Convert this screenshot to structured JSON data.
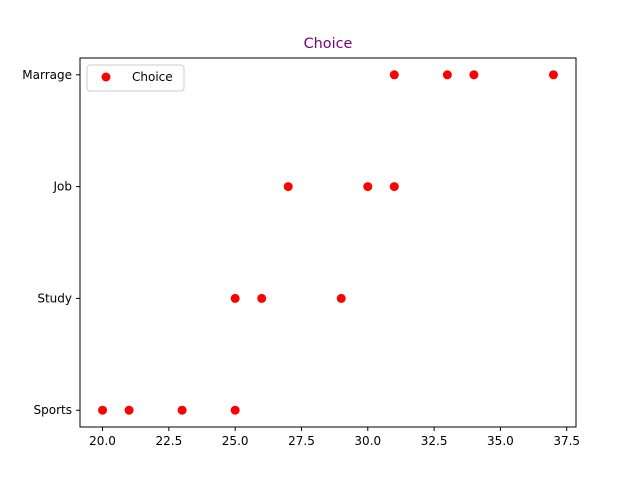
{
  "chart_data": {
    "type": "scatter",
    "title": "Choice",
    "title_color": "#800080",
    "xlabel": "",
    "ylabel": "",
    "xlim": [
      19.15,
      37.85
    ],
    "ylim": [
      -0.15,
      3.15
    ],
    "categories": [
      "Sports",
      "Study",
      "Job",
      "Marrage"
    ],
    "x_ticks": [
      20.0,
      22.5,
      25.0,
      27.5,
      30.0,
      32.5,
      35.0,
      37.5
    ],
    "x_tick_labels": [
      "20.0",
      "22.5",
      "25.0",
      "27.5",
      "30.0",
      "32.5",
      "35.0",
      "37.5"
    ],
    "grid": false,
    "legend_position": "top-left",
    "series": [
      {
        "name": "Choice",
        "color": "#ff0000",
        "points": [
          {
            "x": 20,
            "y": "Sports"
          },
          {
            "x": 21,
            "y": "Sports"
          },
          {
            "x": 23,
            "y": "Sports"
          },
          {
            "x": 25,
            "y": "Sports"
          },
          {
            "x": 25,
            "y": "Study"
          },
          {
            "x": 26,
            "y": "Study"
          },
          {
            "x": 29,
            "y": "Study"
          },
          {
            "x": 27,
            "y": "Job"
          },
          {
            "x": 30,
            "y": "Job"
          },
          {
            "x": 31,
            "y": "Job"
          },
          {
            "x": 31,
            "y": "Marrage"
          },
          {
            "x": 33,
            "y": "Marrage"
          },
          {
            "x": 34,
            "y": "Marrage"
          },
          {
            "x": 37,
            "y": "Marrage"
          }
        ]
      }
    ]
  }
}
